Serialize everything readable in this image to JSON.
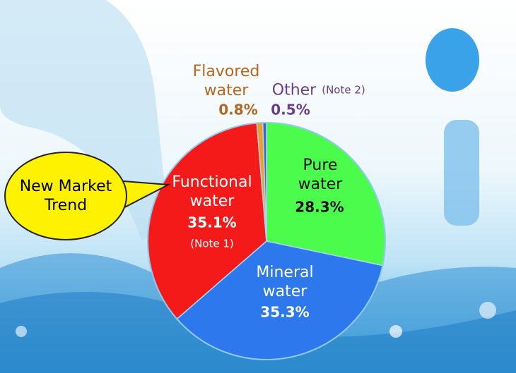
{
  "chart_data": {
    "type": "pie",
    "categories": [
      "Pure water",
      "Mineral water",
      "Functional water",
      "Flavored water",
      "Other"
    ],
    "values": [
      28.3,
      35.3,
      35.1,
      0.8,
      0.5
    ],
    "value_labels": [
      "28.3%",
      "35.3%",
      "35.1%",
      "0.8%",
      "0.5%"
    ],
    "colors": [
      "#4cfc4c",
      "#2c78ec",
      "#f41a1a",
      "#f0a020",
      "#3a64c8"
    ],
    "annotations": {
      "note_1": "(Note 1)",
      "note_2": "(Note 2)",
      "callout": "New Market Trend"
    }
  }
}
